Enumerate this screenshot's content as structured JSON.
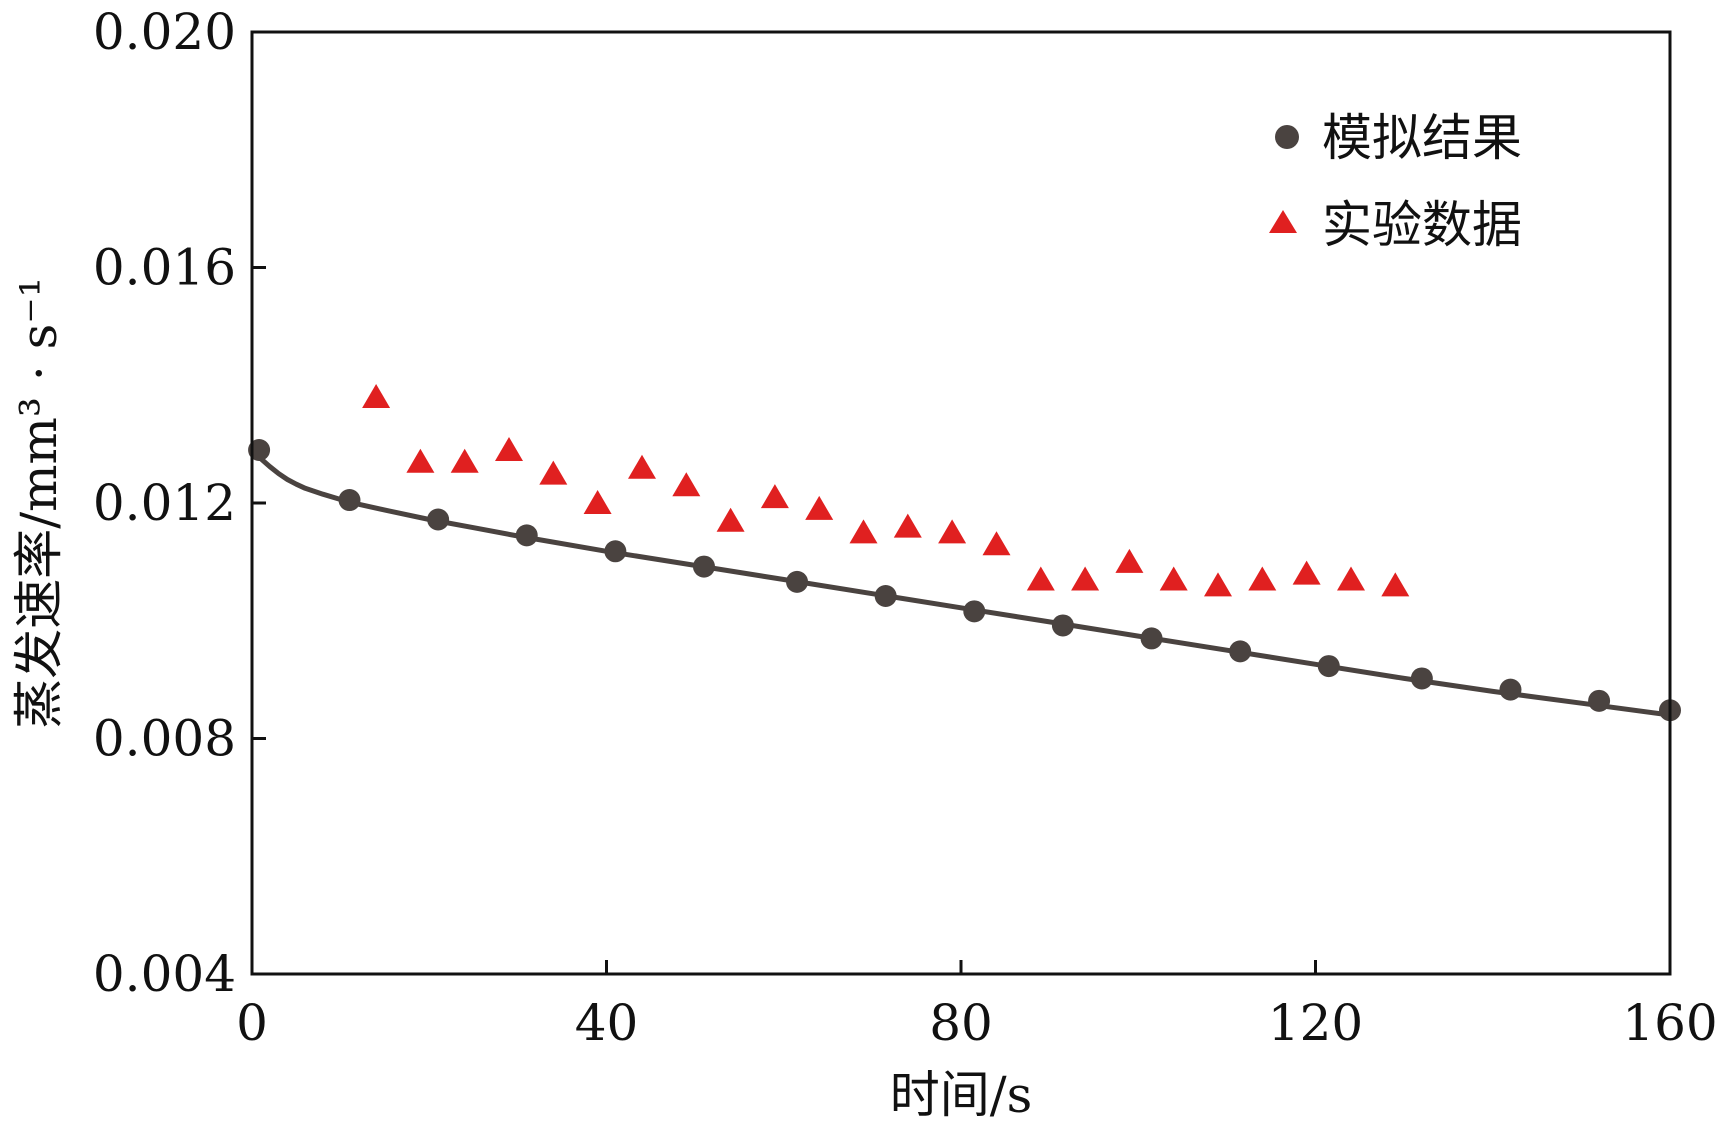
{
  "chart_data": {
    "type": "scatter",
    "xlabel": "时间/s",
    "ylabel": "蒸发速率/mm³ · s⁻¹",
    "xlim": [
      0,
      160
    ],
    "ylim": [
      0.004,
      0.02
    ],
    "x_ticks": [
      0,
      40,
      80,
      120,
      160
    ],
    "y_ticks": [
      0.004,
      0.008,
      0.012,
      0.016,
      0.02
    ],
    "x_tick_labels": [
      "0",
      "40",
      "80",
      "120",
      "160"
    ],
    "y_tick_labels": [
      "0.004",
      "0.008",
      "0.012",
      "0.016",
      "0.020"
    ],
    "grid": false,
    "legend_position": "top-right",
    "series": [
      {
        "name": "模拟结果",
        "marker": "circle",
        "color": "#4a4340",
        "line": true,
        "curve_x": [
          0,
          1,
          2,
          3,
          4,
          5,
          6,
          8,
          10,
          12,
          15,
          20,
          25,
          30,
          40,
          50,
          60,
          70,
          80,
          90,
          100,
          110,
          120,
          130,
          140,
          150,
          160
        ],
        "curve_y": [
          0.01285,
          0.01275,
          0.01262,
          0.0125,
          0.0124,
          0.01232,
          0.01225,
          0.01215,
          0.01206,
          0.01198,
          0.01188,
          0.01172,
          0.01158,
          0.01144,
          0.01118,
          0.01094,
          0.0107,
          0.01046,
          0.01022,
          0.00998,
          0.00974,
          0.0095,
          0.00926,
          0.00902,
          0.0088,
          0.0086,
          0.0084
        ],
        "x": [
          0.8,
          11,
          21,
          31,
          41,
          51,
          61.5,
          71.5,
          81.5,
          91.5,
          101.5,
          111.5,
          121.5,
          132,
          142,
          152,
          160
        ],
        "y": [
          0.0129,
          0.01205,
          0.01172,
          0.01145,
          0.01118,
          0.01092,
          0.01066,
          0.01042,
          0.01016,
          0.00992,
          0.0097,
          0.00948,
          0.00923,
          0.00902,
          0.00883,
          0.00864,
          0.00848
        ]
      },
      {
        "name": "实验数据",
        "marker": "triangle",
        "color": "#e02020",
        "line": false,
        "x": [
          14,
          19,
          24,
          29,
          34,
          39,
          44,
          49,
          54,
          59,
          64,
          69,
          74,
          79,
          84,
          89,
          94,
          99,
          104,
          109,
          114,
          119,
          124,
          129
        ],
        "y": [
          0.0138,
          0.0127,
          0.0127,
          0.0129,
          0.0125,
          0.012,
          0.0126,
          0.0123,
          0.0117,
          0.0121,
          0.0119,
          0.0115,
          0.0116,
          0.0115,
          0.0113,
          0.0107,
          0.0107,
          0.011,
          0.0107,
          0.0106,
          0.0107,
          0.0108,
          0.0107,
          0.0106
        ]
      }
    ]
  }
}
